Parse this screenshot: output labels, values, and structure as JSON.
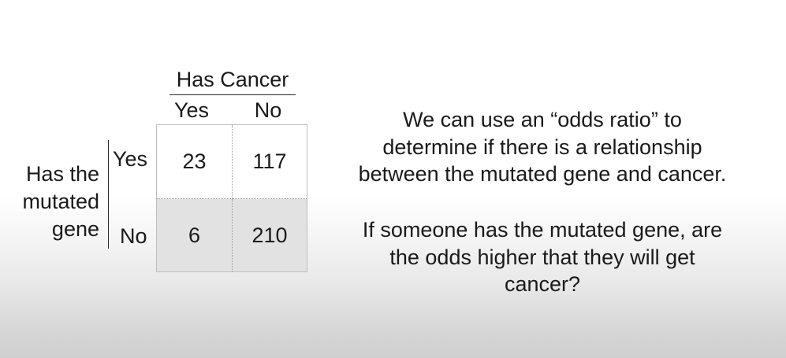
{
  "contingency_table": {
    "column_header": "Has Cancer",
    "column_labels": [
      "Yes",
      "No"
    ],
    "row_header": [
      "Has the",
      "mutated",
      "gene"
    ],
    "row_labels": [
      "Yes",
      "No"
    ],
    "cells": [
      [
        "23",
        "117"
      ],
      [
        "6",
        "210"
      ]
    ]
  },
  "explanation": {
    "paragraph1": [
      "We can use an “odds ratio” to",
      "determine if there is a relationship",
      "between the mutated gene and cancer."
    ],
    "paragraph2": [
      "If someone has the mutated gene, are",
      "the odds higher that they will get",
      "cancer?"
    ]
  }
}
